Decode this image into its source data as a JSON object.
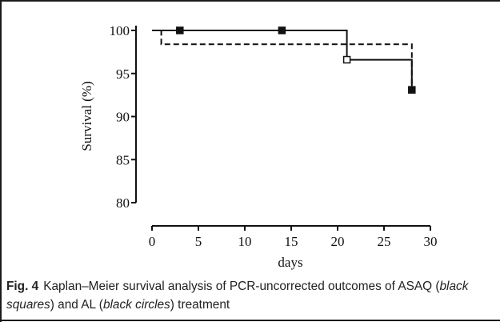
{
  "caption": {
    "label": "Fig. 4",
    "text_1": "Kaplan–Meier survival analysis of PCR-uncorrected outcomes of ASAQ (",
    "italic_1": "black squares",
    "text_2": ") and AL (",
    "italic_2": "black circles",
    "text_3": ") treatment"
  },
  "chart_data": {
    "type": "line",
    "title": "",
    "xlabel": "days",
    "ylabel": "Survival (%)",
    "xlim": [
      0,
      30
    ],
    "ylim": [
      80,
      100
    ],
    "x_ticks": [
      0,
      5,
      10,
      15,
      20,
      25,
      30
    ],
    "y_ticks": [
      80,
      85,
      90,
      95,
      100
    ],
    "grid": false,
    "series": [
      {
        "style": "solid",
        "color": "#111111",
        "step": [
          [
            0,
            100
          ],
          [
            21,
            100
          ],
          [
            21,
            96.6
          ],
          [
            28,
            96.6
          ],
          [
            28,
            93.1
          ]
        ],
        "markers": [
          [
            3,
            100
          ],
          [
            14,
            100
          ],
          [
            21,
            96.6
          ],
          [
            28,
            93.1
          ]
        ],
        "marker_fill": [
          "#111111",
          "#111111",
          "#ffffff",
          "#111111"
        ]
      },
      {
        "style": "dashed",
        "color": "#111111",
        "step": [
          [
            0,
            100
          ],
          [
            1,
            100
          ],
          [
            1,
            98.4
          ],
          [
            28,
            98.4
          ],
          [
            28,
            93.1
          ]
        ],
        "markers": [],
        "marker_fill": []
      }
    ]
  }
}
